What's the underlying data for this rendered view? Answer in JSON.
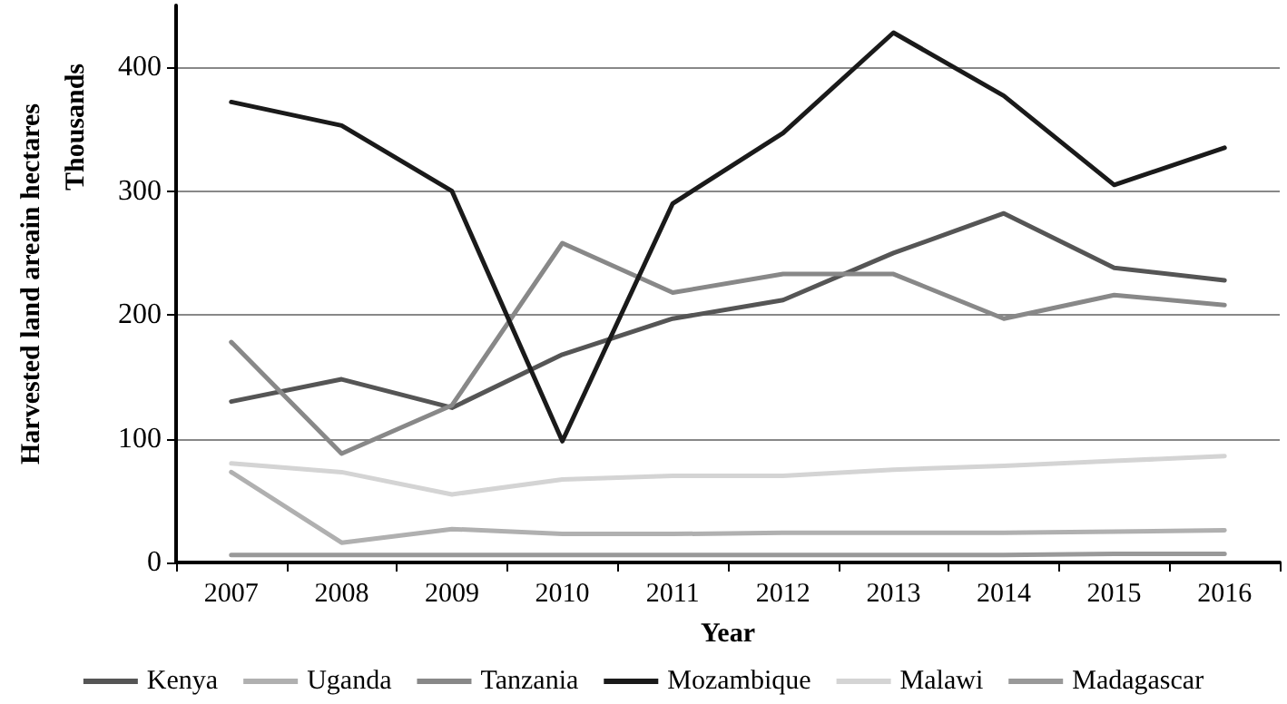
{
  "chart_data": {
    "type": "line",
    "xlabel": "Year",
    "ylabel": "Harvested land areain hectares",
    "annotations": [
      "Thousands"
    ],
    "categories": [
      "2007",
      "2008",
      "2009",
      "2010",
      "2011",
      "2012",
      "2013",
      "2014",
      "2015",
      "2016"
    ],
    "ylim": [
      0,
      450
    ],
    "yticks": [
      0,
      100,
      200,
      300,
      400
    ],
    "grid": "y",
    "legend": "bottom",
    "marker": "none",
    "line_style": "solid",
    "series": [
      {
        "name": "Kenya",
        "color": "#555555",
        "values": [
          130,
          148,
          125,
          168,
          197,
          212,
          250,
          282,
          238,
          228
        ]
      },
      {
        "name": "Uganda",
        "color": "#b0b0b0",
        "values": [
          73,
          16,
          27,
          23,
          23,
          24,
          24,
          24,
          25,
          26
        ]
      },
      {
        "name": "Tanzania",
        "color": "#888888",
        "values": [
          178,
          88,
          127,
          258,
          218,
          233,
          233,
          197,
          216,
          208
        ]
      },
      {
        "name": "Mozambique",
        "color": "#1a1a1a",
        "values": [
          372,
          353,
          300,
          98,
          290,
          347,
          428,
          377,
          305,
          335
        ]
      },
      {
        "name": "Malawi",
        "color": "#d4d4d4",
        "values": [
          80,
          73,
          55,
          67,
          70,
          70,
          75,
          78,
          82,
          86
        ]
      },
      {
        "name": "Madagascar",
        "color": "#999999",
        "values": [
          6,
          6,
          6,
          6,
          6,
          6,
          6,
          6,
          7,
          7
        ]
      }
    ]
  }
}
